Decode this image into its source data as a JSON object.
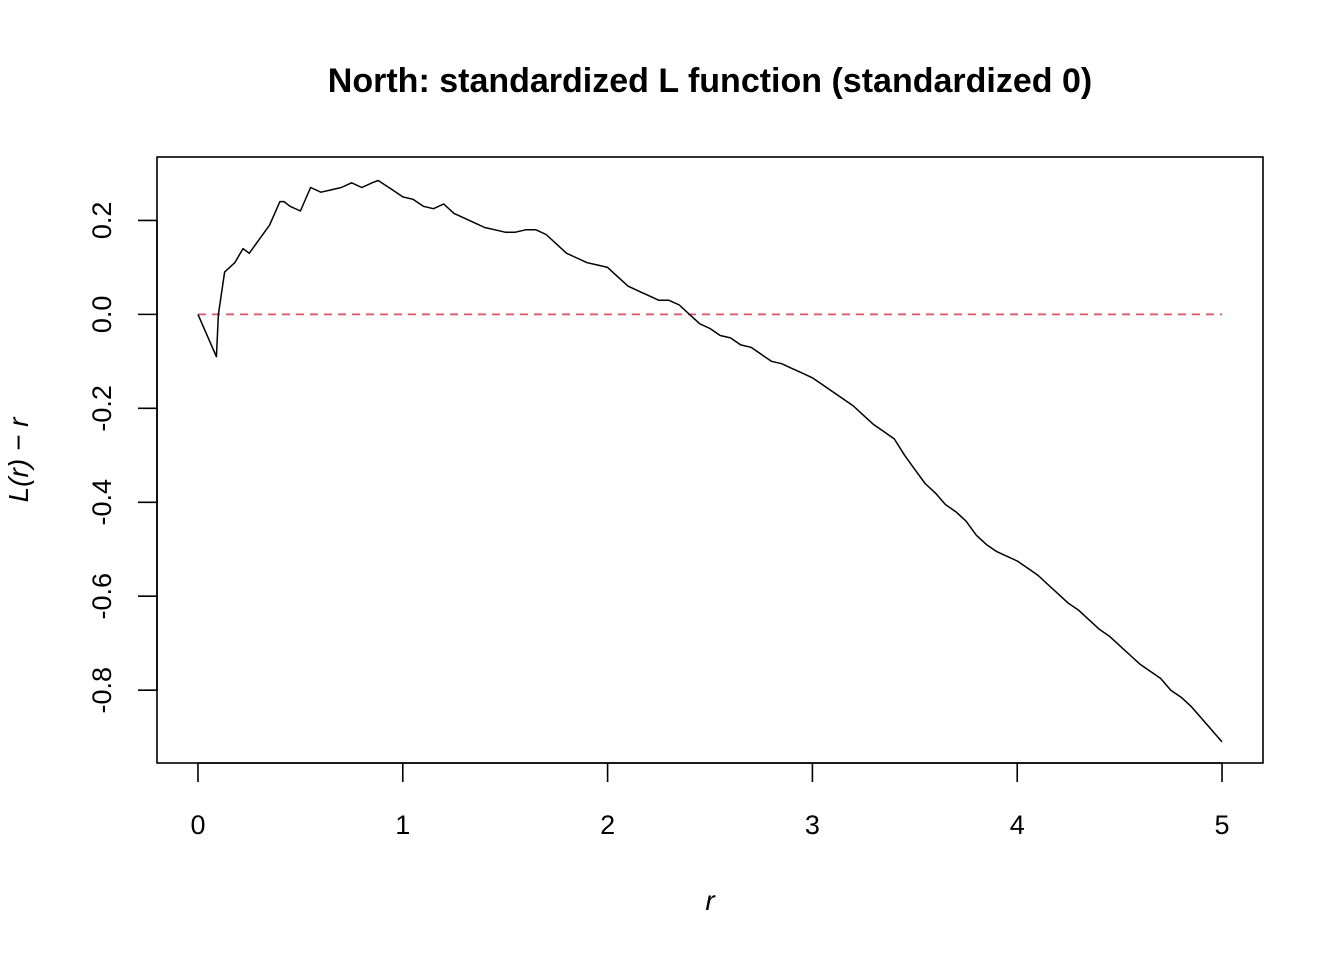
{
  "chart_data": {
    "type": "line",
    "title": "North: standardized L function (standardized 0)",
    "xlabel": "r",
    "ylabel": "L(r) − r",
    "xlim": [
      -0.2,
      5.2
    ],
    "ylim": [
      -0.955,
      0.335
    ],
    "x_ticks": [
      0,
      1,
      2,
      3,
      4,
      5
    ],
    "x_tick_labels": [
      "0",
      "1",
      "2",
      "3",
      "4",
      "5"
    ],
    "y_ticks": [
      -0.8,
      -0.6,
      -0.4,
      -0.2,
      0.0,
      0.2
    ],
    "y_tick_labels": [
      "-0.8",
      "-0.6",
      "-0.4",
      "-0.2",
      "0.0",
      "0.2"
    ],
    "grid": false,
    "colors": {
      "observed": "#000000",
      "theoretical": "#df536b"
    },
    "series": [
      {
        "x": [
          0,
          0.09,
          0.1,
          0.13,
          0.18,
          0.22,
          0.25,
          0.3,
          0.35,
          0.4,
          0.42,
          0.45,
          0.5,
          0.55,
          0.6,
          0.65,
          0.7,
          0.75,
          0.8,
          0.85,
          0.88,
          0.95,
          1.0,
          1.05,
          1.1,
          1.15,
          1.2,
          1.25,
          1.3,
          1.35,
          1.4,
          1.45,
          1.5,
          1.55,
          1.6,
          1.65,
          1.7,
          1.75,
          1.8,
          1.85,
          1.9,
          1.95,
          2.0,
          2.05,
          2.1,
          2.15,
          2.2,
          2.25,
          2.3,
          2.35,
          2.4,
          2.45,
          2.5,
          2.55,
          2.6,
          2.65,
          2.7,
          2.75,
          2.8,
          2.85,
          2.9,
          2.95,
          3.0,
          3.05,
          3.1,
          3.15,
          3.2,
          3.25,
          3.3,
          3.35,
          3.4,
          3.45,
          3.5,
          3.55,
          3.6,
          3.65,
          3.7,
          3.75,
          3.8,
          3.85,
          3.9,
          3.95,
          4.0,
          4.05,
          4.1,
          4.15,
          4.2,
          4.25,
          4.3,
          4.35,
          4.4,
          4.45,
          4.5,
          4.55,
          4.6,
          4.65,
          4.7,
          4.75,
          4.8,
          4.85,
          4.9,
          4.95,
          5.0
        ],
        "values": [
          0.0,
          -0.09,
          0.0,
          0.09,
          0.11,
          0.14,
          0.13,
          0.16,
          0.19,
          0.24,
          0.24,
          0.23,
          0.22,
          0.27,
          0.26,
          0.265,
          0.27,
          0.28,
          0.27,
          0.28,
          0.285,
          0.265,
          0.25,
          0.245,
          0.23,
          0.225,
          0.235,
          0.215,
          0.205,
          0.195,
          0.185,
          0.18,
          0.175,
          0.175,
          0.18,
          0.18,
          0.17,
          0.15,
          0.13,
          0.12,
          0.11,
          0.105,
          0.1,
          0.08,
          0.06,
          0.05,
          0.04,
          0.03,
          0.03,
          0.02,
          0.0,
          -0.02,
          -0.03,
          -0.045,
          -0.05,
          -0.065,
          -0.07,
          -0.085,
          -0.1,
          -0.105,
          -0.115,
          -0.125,
          -0.135,
          -0.15,
          -0.165,
          -0.18,
          -0.195,
          -0.215,
          -0.235,
          -0.25,
          -0.265,
          -0.3,
          -0.33,
          -0.36,
          -0.38,
          -0.405,
          -0.42,
          -0.44,
          -0.47,
          -0.49,
          -0.505,
          -0.515,
          -0.525,
          -0.54,
          -0.555,
          -0.575,
          -0.595,
          -0.615,
          -0.63,
          -0.65,
          -0.67,
          -0.685,
          -0.705,
          -0.725,
          -0.745,
          -0.76,
          -0.775,
          -0.8,
          -0.815,
          -0.835,
          -0.86,
          -0.885,
          -0.91
        ]
      },
      {
        "x": [
          0,
          5
        ],
        "values": [
          0,
          0
        ]
      }
    ]
  }
}
